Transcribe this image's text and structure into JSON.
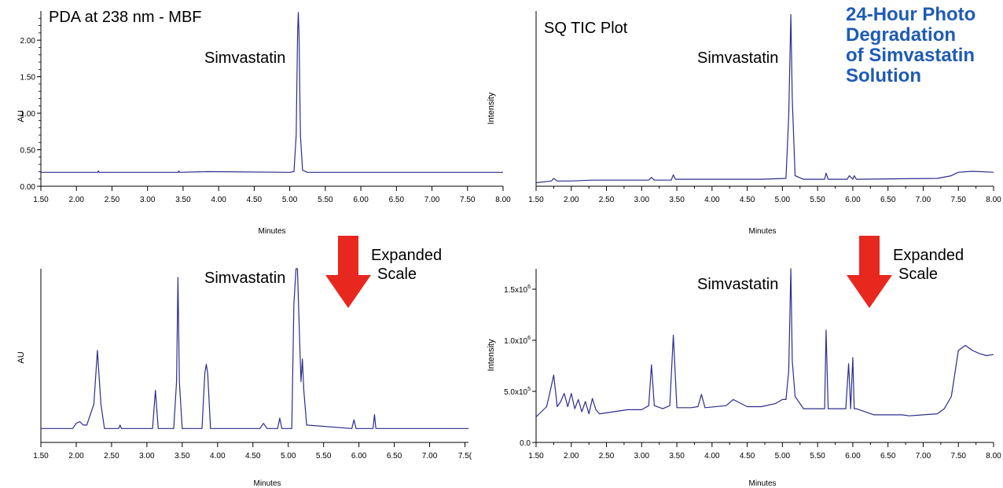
{
  "corner_title": [
    "24-Hour Photo",
    "Degradation",
    "of Simvastatin",
    "Solution"
  ],
  "colors": {
    "trace": "#2b2d8c",
    "arrow": "#e8271f",
    "axis": "#000000",
    "title": "#1f5bb5"
  },
  "expand_label": [
    "Expanded",
    "Scale"
  ],
  "chart_data": [
    {
      "id": "pda-full",
      "type": "line",
      "title": "PDA at 238 nm - MBF",
      "xlabel": "Minutes",
      "ylabel": "AU",
      "xlim": [
        1.5,
        8.0
      ],
      "ylim": [
        0.0,
        2.4
      ],
      "xticks": [
        "1.50",
        "2.00",
        "2.50",
        "3.00",
        "3.50",
        "4.00",
        "4.50",
        "5.00",
        "5.50",
        "6.00",
        "6.50",
        "7.00",
        "7.50",
        "8.00"
      ],
      "yticks": [
        "0.00",
        "0.50",
        "1.00",
        "1.50",
        "2.00"
      ],
      "annotations": [
        {
          "text": "Simvastatin",
          "x": 5.12
        }
      ],
      "series": [
        {
          "x": [
            1.5,
            2.3,
            2.31,
            2.32,
            3.43,
            3.44,
            3.45,
            3.85,
            5.0,
            5.06,
            5.09,
            5.11,
            5.12,
            5.13,
            5.15,
            5.18,
            5.25,
            8.0
          ],
          "y": [
            0.19,
            0.19,
            0.21,
            0.19,
            0.19,
            0.21,
            0.19,
            0.2,
            0.19,
            0.2,
            0.7,
            2.1,
            2.38,
            2.1,
            0.7,
            0.22,
            0.19,
            0.19
          ]
        }
      ]
    },
    {
      "id": "tic-full",
      "type": "line",
      "title": "SQ TIC Plot",
      "xlabel": "Minutes",
      "ylabel": "Intensity",
      "xlim": [
        1.5,
        8.0
      ],
      "ylim": [
        0.0,
        1.0
      ],
      "xticks": [
        "1.50",
        "1.75",
        "2.00",
        "2.25",
        "2.50",
        "2.75",
        "3.00",
        "3.25",
        "3.50",
        "3.75",
        "4.00",
        "4.25",
        "4.50",
        "4.75",
        "5.00",
        "5.25",
        "5.50",
        "5.75",
        "6.00",
        "6.25",
        "6.50",
        "6.75",
        "7.00",
        "7.25",
        "7.50",
        "7.75",
        "8.00"
      ],
      "yticks": [],
      "annotations": [
        {
          "text": "Simvastatin",
          "x": 5.12
        }
      ],
      "series": [
        {
          "x": [
            1.5,
            1.72,
            1.75,
            1.8,
            2.0,
            2.3,
            3.1,
            3.14,
            3.18,
            3.42,
            3.45,
            3.48,
            4.7,
            5.05,
            5.09,
            5.12,
            5.14,
            5.18,
            5.3,
            5.6,
            5.62,
            5.65,
            5.92,
            5.95,
            6.0,
            6.02,
            6.05,
            7.2,
            7.4,
            7.5,
            7.7,
            8.0
          ],
          "y": [
            0.02,
            0.03,
            0.045,
            0.03,
            0.03,
            0.035,
            0.035,
            0.05,
            0.035,
            0.035,
            0.065,
            0.04,
            0.04,
            0.045,
            0.4,
            0.98,
            0.5,
            0.06,
            0.04,
            0.04,
            0.075,
            0.04,
            0.04,
            0.06,
            0.04,
            0.06,
            0.04,
            0.045,
            0.06,
            0.08,
            0.085,
            0.08
          ]
        }
      ]
    },
    {
      "id": "pda-expanded",
      "type": "line",
      "title": "",
      "xlabel": "Minutes",
      "ylabel": "AU",
      "xlim": [
        1.5,
        7.55
      ],
      "ylim": [
        0.0,
        1.0
      ],
      "xticks": [
        "1.50",
        "2.00",
        "2.50",
        "3.00",
        "3.50",
        "4.00",
        "4.50",
        "5.00",
        "5.50",
        "6.00",
        "6.50",
        "7.00",
        "7.5("
      ],
      "yticks": [],
      "annotations": [
        {
          "text": "Simvastatin",
          "x": 5.12
        }
      ],
      "series": [
        {
          "x": [
            1.5,
            1.95,
            2.0,
            2.05,
            2.1,
            2.15,
            2.25,
            2.3,
            2.35,
            2.4,
            2.6,
            2.62,
            2.64,
            3.08,
            3.12,
            3.16,
            3.38,
            3.42,
            3.44,
            3.46,
            3.5,
            3.78,
            3.82,
            3.84,
            3.86,
            3.9,
            4.6,
            4.65,
            4.7,
            4.85,
            4.88,
            4.91,
            5.05,
            5.08,
            5.11,
            5.12,
            5.13,
            5.16,
            5.18,
            5.2,
            5.22,
            5.26,
            5.9,
            5.93,
            5.96,
            6.2,
            6.22,
            6.24,
            7.5,
            7.55
          ],
          "y": [
            0.08,
            0.08,
            0.11,
            0.12,
            0.1,
            0.1,
            0.22,
            0.53,
            0.22,
            0.08,
            0.08,
            0.1,
            0.08,
            0.08,
            0.3,
            0.08,
            0.08,
            0.35,
            0.95,
            0.35,
            0.08,
            0.08,
            0.4,
            0.45,
            0.4,
            0.08,
            0.08,
            0.11,
            0.08,
            0.08,
            0.14,
            0.08,
            0.08,
            0.8,
            1.0,
            1.0,
            1.0,
            0.6,
            0.35,
            0.48,
            0.3,
            0.1,
            0.08,
            0.13,
            0.08,
            0.08,
            0.16,
            0.08,
            0.08,
            0.08
          ]
        }
      ]
    },
    {
      "id": "tic-expanded",
      "type": "line",
      "title": "",
      "xlabel": "Minutes",
      "ylabel": "Intensity",
      "xlim": [
        1.5,
        8.0
      ],
      "ylim": [
        0.0,
        1700000
      ],
      "xticks": [
        "1.50",
        "1.75",
        "2.00",
        "2.25",
        "2.50",
        "2.75",
        "3.00",
        "3.25",
        "3.50",
        "3.75",
        "4.00",
        "4.25",
        "4.50",
        "4.75",
        "5.00",
        "5.25",
        "5.50",
        "5.75",
        "6.00",
        "6.25",
        "6.50",
        "6.75",
        "7.00",
        "7.25",
        "7.50",
        "7.75",
        "8.00"
      ],
      "yticks": [
        {
          "value": 0,
          "label": "0.0"
        },
        {
          "value": 500000,
          "label": "5.0x10^5"
        },
        {
          "value": 1000000,
          "label": "1.0x10^6"
        },
        {
          "value": 1500000,
          "label": "1.5x10^6"
        }
      ],
      "annotations": [
        {
          "text": "Simvastatin",
          "x": 5.12
        }
      ],
      "series": [
        {
          "x": [
            1.5,
            1.65,
            1.7,
            1.75,
            1.8,
            1.85,
            1.9,
            1.95,
            2.0,
            2.05,
            2.1,
            2.15,
            2.2,
            2.25,
            2.3,
            2.35,
            2.4,
            2.6,
            2.8,
            3.0,
            3.1,
            3.14,
            3.18,
            3.3,
            3.4,
            3.45,
            3.5,
            3.7,
            3.8,
            3.85,
            3.9,
            4.2,
            4.3,
            4.5,
            4.7,
            4.9,
            5.0,
            5.05,
            5.09,
            5.12,
            5.14,
            5.18,
            5.3,
            5.5,
            5.6,
            5.62,
            5.65,
            5.8,
            5.9,
            5.94,
            5.97,
            6.0,
            6.02,
            6.05,
            6.3,
            6.7,
            6.8,
            7.0,
            7.2,
            7.3,
            7.4,
            7.5,
            7.6,
            7.7,
            7.8,
            7.9,
            8.0
          ],
          "y": [
            250000,
            350000,
            500000,
            660000,
            350000,
            400000,
            480000,
            350000,
            480000,
            330000,
            420000,
            300000,
            400000,
            280000,
            430000,
            320000,
            280000,
            300000,
            320000,
            320000,
            360000,
            760000,
            360000,
            330000,
            360000,
            1050000,
            340000,
            340000,
            350000,
            470000,
            340000,
            360000,
            420000,
            350000,
            350000,
            380000,
            420000,
            420000,
            700000,
            1700000,
            800000,
            450000,
            330000,
            330000,
            330000,
            1100000,
            330000,
            330000,
            330000,
            770000,
            330000,
            830000,
            330000,
            330000,
            270000,
            270000,
            260000,
            270000,
            280000,
            330000,
            450000,
            900000,
            950000,
            900000,
            870000,
            850000,
            860000
          ]
        }
      ]
    }
  ]
}
